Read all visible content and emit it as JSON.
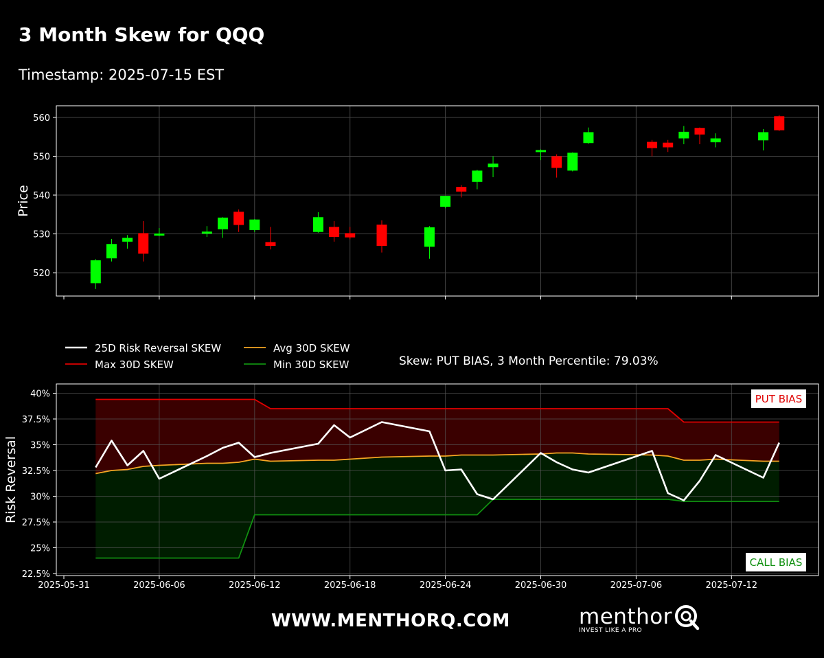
{
  "header": {
    "title": "3 Month Skew for QQQ",
    "subtitle": "Timestamp: 2025-07-15 EST"
  },
  "footer": {
    "site": "WWW.MENTHORQ.COM",
    "brand": "menthor",
    "brand_tagline": "INVEST LIKE A PRO"
  },
  "colors": {
    "up": "#00ff00",
    "down": "#ff0000",
    "rr_line": "#ffffff",
    "max_line": "#e00000",
    "avg_line": "#f5a623",
    "min_line": "#109010",
    "put_fill": "#3a0000",
    "call_fill": "#001d00"
  },
  "chart_data": [
    {
      "type": "candlestick",
      "ylabel": "Price",
      "ylim": [
        514,
        563
      ],
      "yticks": [
        520,
        530,
        540,
        550,
        560
      ],
      "xlim": [
        "2025-05-31",
        "2025-07-16"
      ],
      "grid": true,
      "candles": [
        {
          "date": "2025-06-02",
          "open": 517.3,
          "high": 523.5,
          "low": 515.8,
          "close": 523.2
        },
        {
          "date": "2025-06-03",
          "open": 523.7,
          "high": 528.7,
          "low": 522.9,
          "close": 527.4
        },
        {
          "date": "2025-06-04",
          "open": 528.0,
          "high": 529.7,
          "low": 526.2,
          "close": 529.0
        },
        {
          "date": "2025-06-05",
          "open": 530.2,
          "high": 533.3,
          "low": 522.9,
          "close": 524.9
        },
        {
          "date": "2025-06-06",
          "open": 529.9,
          "high": 531.5,
          "low": 529.4,
          "close": 530.1
        },
        {
          "date": "2025-06-09",
          "open": 530.1,
          "high": 532.0,
          "low": 529.2,
          "close": 530.6
        },
        {
          "date": "2025-06-10",
          "open": 531.2,
          "high": 534.3,
          "low": 529.0,
          "close": 534.2
        },
        {
          "date": "2025-06-11",
          "open": 535.7,
          "high": 536.3,
          "low": 530.5,
          "close": 532.3
        },
        {
          "date": "2025-06-12",
          "open": 531.0,
          "high": 533.8,
          "low": 530.5,
          "close": 533.7
        },
        {
          "date": "2025-06-13",
          "open": 527.9,
          "high": 531.8,
          "low": 526.0,
          "close": 526.9
        },
        {
          "date": "2025-06-16",
          "open": 530.5,
          "high": 535.6,
          "low": 530.3,
          "close": 534.3
        },
        {
          "date": "2025-06-17",
          "open": 531.8,
          "high": 533.3,
          "low": 528.0,
          "close": 529.2
        },
        {
          "date": "2025-06-18",
          "open": 530.2,
          "high": 531.8,
          "low": 528.6,
          "close": 529.1
        },
        {
          "date": "2025-06-20",
          "open": 532.4,
          "high": 533.5,
          "low": 525.2,
          "close": 526.9
        },
        {
          "date": "2025-06-23",
          "open": 526.7,
          "high": 532.0,
          "low": 523.6,
          "close": 531.7
        },
        {
          "date": "2025-06-24",
          "open": 537.0,
          "high": 539.8,
          "low": 536.6,
          "close": 539.8
        },
        {
          "date": "2025-06-25",
          "open": 542.1,
          "high": 542.6,
          "low": 539.4,
          "close": 540.9
        },
        {
          "date": "2025-06-26",
          "open": 543.4,
          "high": 546.5,
          "low": 541.5,
          "close": 546.3
        },
        {
          "date": "2025-06-27",
          "open": 547.2,
          "high": 550.0,
          "low": 544.6,
          "close": 548.1
        },
        {
          "date": "2025-06-30",
          "open": 551.2,
          "high": 551.8,
          "low": 549.0,
          "close": 551.6
        },
        {
          "date": "2025-07-01",
          "open": 550.0,
          "high": 550.5,
          "low": 544.5,
          "close": 547.0
        },
        {
          "date": "2025-07-02",
          "open": 546.3,
          "high": 551.0,
          "low": 546.1,
          "close": 550.9
        },
        {
          "date": "2025-07-03",
          "open": 553.4,
          "high": 557.4,
          "low": 553.2,
          "close": 556.2
        },
        {
          "date": "2025-07-07",
          "open": 553.7,
          "high": 554.2,
          "low": 550.0,
          "close": 552.1
        },
        {
          "date": "2025-07-08",
          "open": 553.5,
          "high": 554.2,
          "low": 551.1,
          "close": 552.3
        },
        {
          "date": "2025-07-09",
          "open": 554.6,
          "high": 557.8,
          "low": 553.1,
          "close": 556.3
        },
        {
          "date": "2025-07-10",
          "open": 557.3,
          "high": 557.4,
          "low": 553.1,
          "close": 555.6
        },
        {
          "date": "2025-07-11",
          "open": 553.6,
          "high": 555.9,
          "low": 552.3,
          "close": 554.6
        },
        {
          "date": "2025-07-14",
          "open": 554.1,
          "high": 557.0,
          "low": 551.5,
          "close": 556.2
        },
        {
          "date": "2025-07-15",
          "open": 560.3,
          "high": 560.6,
          "low": 556.5,
          "close": 556.7
        }
      ]
    },
    {
      "type": "line",
      "ylabel": "Risk Reversal",
      "ylim": [
        22.3,
        40.9
      ],
      "yticks": [
        22.5,
        25,
        27.5,
        30,
        32.5,
        35,
        37.5,
        40
      ],
      "ytick_labels": [
        "22.5%",
        "25%",
        "27.5%",
        "30%",
        "32.5%",
        "35%",
        "37.5%",
        "40%"
      ],
      "xlim": [
        "2025-05-31",
        "2025-07-16"
      ],
      "xticks": [
        "2025-05-31",
        "2025-06-06",
        "2025-06-12",
        "2025-06-18",
        "2025-06-24",
        "2025-06-30",
        "2025-07-06",
        "2025-07-12"
      ],
      "grid": true,
      "annotation": "Skew: PUT BIAS, 3 Month Percentile: 79.03%",
      "put_bias_label": "PUT BIAS",
      "call_bias_label": "CALL BIAS",
      "legend_placement": "top-left, outside above plot",
      "x": [
        "2025-06-02",
        "2025-06-03",
        "2025-06-04",
        "2025-06-05",
        "2025-06-06",
        "2025-06-09",
        "2025-06-10",
        "2025-06-11",
        "2025-06-12",
        "2025-06-13",
        "2025-06-16",
        "2025-06-17",
        "2025-06-18",
        "2025-06-20",
        "2025-06-23",
        "2025-06-24",
        "2025-06-25",
        "2025-06-26",
        "2025-06-27",
        "2025-06-30",
        "2025-07-01",
        "2025-07-02",
        "2025-07-03",
        "2025-07-07",
        "2025-07-08",
        "2025-07-09",
        "2025-07-10",
        "2025-07-11",
        "2025-07-14",
        "2025-07-15"
      ],
      "series": [
        {
          "name": "25D Risk Reversal SKEW",
          "values": [
            32.8,
            35.4,
            33.0,
            34.4,
            31.7,
            33.9,
            34.7,
            35.2,
            33.8,
            34.2,
            35.1,
            36.9,
            35.7,
            37.2,
            36.3,
            32.5,
            32.6,
            30.2,
            29.7,
            34.2,
            33.3,
            32.6,
            32.3,
            34.4,
            30.3,
            29.6,
            31.5,
            34.0,
            31.8,
            35.2
          ]
        },
        {
          "name": "Max 30D SKEW",
          "values": [
            39.4,
            39.4,
            39.4,
            39.4,
            39.4,
            39.4,
            39.4,
            39.4,
            39.4,
            38.5,
            38.5,
            38.5,
            38.5,
            38.5,
            38.5,
            38.5,
            38.5,
            38.5,
            38.5,
            38.5,
            38.5,
            38.5,
            38.5,
            38.5,
            38.5,
            37.2,
            37.2,
            37.2,
            37.2,
            37.2
          ]
        },
        {
          "name": "Avg 30D SKEW",
          "values": [
            32.2,
            32.5,
            32.6,
            32.9,
            33.0,
            33.2,
            33.2,
            33.3,
            33.6,
            33.4,
            33.5,
            33.5,
            33.6,
            33.8,
            33.9,
            33.9,
            34.0,
            34.0,
            34.0,
            34.1,
            34.2,
            34.2,
            34.1,
            34.0,
            33.9,
            33.5,
            33.5,
            33.6,
            33.4,
            33.4
          ]
        },
        {
          "name": "Min 30D SKEW",
          "values": [
            24.0,
            24.0,
            24.0,
            24.0,
            24.0,
            24.0,
            24.0,
            24.0,
            28.2,
            28.2,
            28.2,
            28.2,
            28.2,
            28.2,
            28.2,
            28.2,
            28.2,
            28.2,
            29.7,
            29.7,
            29.7,
            29.7,
            29.7,
            29.7,
            29.7,
            29.5,
            29.5,
            29.5,
            29.5,
            29.5
          ]
        }
      ]
    }
  ]
}
